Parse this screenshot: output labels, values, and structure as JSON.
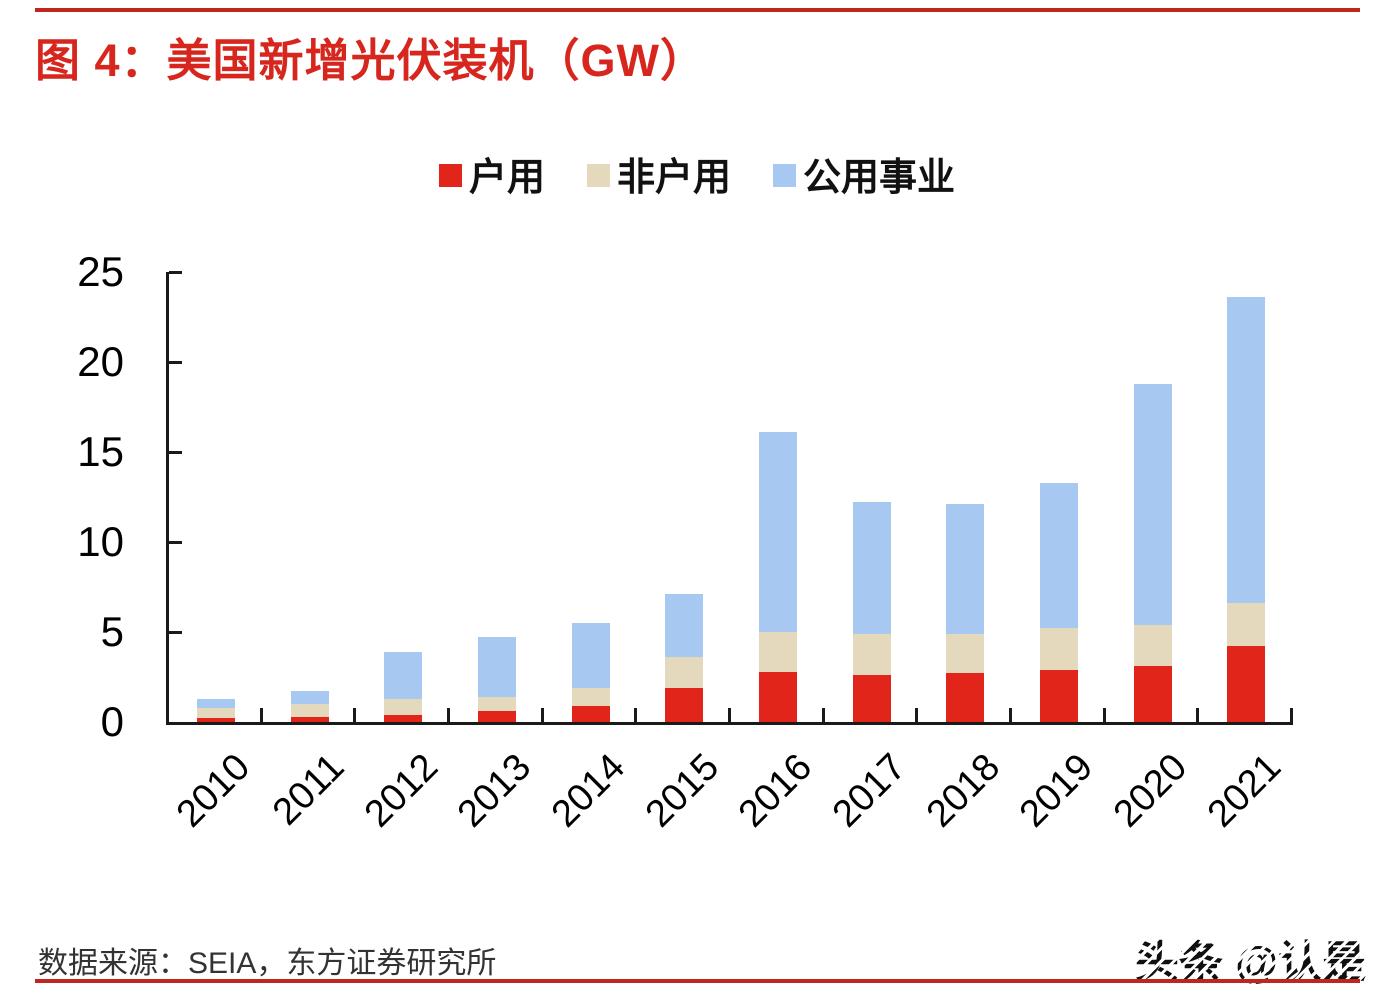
{
  "header": {
    "title": "图 4：美国新增光伏装机（GW）"
  },
  "legend": {
    "items": [
      {
        "label": "户用",
        "color": "#e2251b"
      },
      {
        "label": "非户用",
        "color": "#e4d8bd"
      },
      {
        "label": "公用事业",
        "color": "#a6c8f1"
      }
    ]
  },
  "chart_data": {
    "type": "bar",
    "stacked": true,
    "title": "美国新增光伏装机（GW）",
    "categories": [
      "2010",
      "2011",
      "2012",
      "2013",
      "2014",
      "2015",
      "2016",
      "2017",
      "2018",
      "2019",
      "2020",
      "2021"
    ],
    "series": [
      {
        "name": "户用",
        "color": "#e2251b",
        "values": [
          0.2,
          0.3,
          0.4,
          0.6,
          0.9,
          1.9,
          2.8,
          2.6,
          2.7,
          2.9,
          3.1,
          4.2
        ]
      },
      {
        "name": "非户用",
        "color": "#e4d8bd",
        "values": [
          0.6,
          0.7,
          0.9,
          0.8,
          1.0,
          1.7,
          2.2,
          2.3,
          2.2,
          2.3,
          2.3,
          2.4
        ]
      },
      {
        "name": "公用事业",
        "color": "#a6c8f1",
        "values": [
          0.5,
          0.7,
          2.6,
          3.3,
          3.6,
          3.5,
          11.1,
          7.3,
          7.2,
          8.1,
          13.4,
          17.0
        ]
      }
    ],
    "totals": [
      1.3,
      1.7,
      3.9,
      4.7,
      5.5,
      7.1,
      16.1,
      12.2,
      12.1,
      13.3,
      18.8,
      23.6
    ],
    "xlabel": "",
    "ylabel": "",
    "ylim": [
      0,
      25
    ],
    "yticks": [
      0,
      5,
      10,
      15,
      20,
      25
    ],
    "grid": false,
    "legend_position": "top"
  },
  "colors": {
    "accent_red": "#d7261d",
    "divider_red": "#c0261e",
    "axis_black": "#1a1a1a"
  },
  "footer": {
    "source": "数据来源：SEIA，东方证券研究所",
    "watermark": "头条 @认是"
  }
}
